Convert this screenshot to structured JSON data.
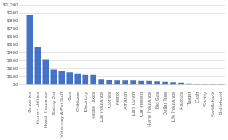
{
  "chart_data": {
    "type": "bar",
    "categories": [
      "Groceries",
      "Home - Utilities",
      "Health Insurance",
      "Eating Out",
      "Veterinary & Pet Stuff",
      "Gas",
      "Childcare",
      "Electricity",
      "House Taxes",
      "Car Insurance",
      "Clothes",
      "Netflix",
      "Amazon",
      "Kid's Lunch",
      "Car Interest",
      "Home Insurance",
      "Big Gas",
      "Dollar Tree",
      "Life Insurance",
      "Haircuts",
      "Target",
      "Cash",
      "Spotify",
      "Saddleback",
      "Robinhood"
    ],
    "values": [
      870,
      475,
      320,
      190,
      175,
      155,
      140,
      130,
      130,
      75,
      65,
      55,
      55,
      55,
      50,
      50,
      45,
      40,
      35,
      30,
      20,
      15,
      10,
      10,
      10
    ],
    "color": "#4472C4",
    "ylim": [
      0,
      1000
    ],
    "yticks": [
      {
        "value": 0,
        "label": "$0"
      },
      {
        "value": 100,
        "label": "$100"
      },
      {
        "value": 200,
        "label": "$200"
      },
      {
        "value": 300,
        "label": "$300"
      },
      {
        "value": 400,
        "label": "$400"
      },
      {
        "value": 500,
        "label": "$500"
      },
      {
        "value": 600,
        "label": "$600"
      },
      {
        "value": 700,
        "label": "$700"
      },
      {
        "value": 800,
        "label": "$800"
      },
      {
        "value": 900,
        "label": "$900"
      },
      {
        "value": 1000,
        "label": "$1,000"
      }
    ],
    "grid": true
  }
}
